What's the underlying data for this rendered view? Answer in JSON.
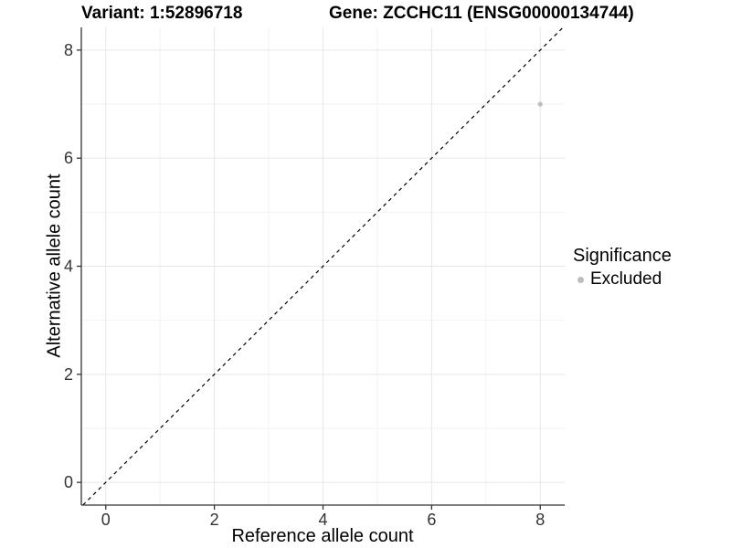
{
  "header": {
    "variant_title": "Variant: 1:52896718",
    "gene_title": "Gene: ZCCHC11 (ENSG00000134744)"
  },
  "chart_data": {
    "type": "scatter",
    "xlabel": "Reference allele count",
    "ylabel": "Alternative allele count",
    "xlim": [
      -0.45,
      8.45
    ],
    "ylim": [
      -0.42,
      8.42
    ],
    "x_ticks": [
      0,
      2,
      4,
      6,
      8
    ],
    "y_ticks": [
      0,
      2,
      4,
      6,
      8
    ],
    "x_minor_ticks": [
      1,
      3,
      5,
      7
    ],
    "y_minor_ticks": [
      1,
      3,
      5,
      7
    ],
    "grid": "on",
    "legend_position": "right",
    "series": [
      {
        "name": "Excluded",
        "color": "#bdbdbd",
        "points": [
          {
            "x": 8,
            "y": 7
          }
        ]
      }
    ],
    "reference_line": {
      "type": "identity",
      "style": "dashed",
      "color": "#000000"
    }
  },
  "legend": {
    "title": "Significance",
    "items": [
      {
        "label": "Excluded",
        "color": "#bdbdbd"
      }
    ]
  },
  "colors": {
    "background": "#ffffff",
    "grid_major": "#e7e7e7",
    "grid_minor": "#f2f2f2",
    "axis_line": "#333333",
    "tick_label": "#333333",
    "point": "#bdbdbd"
  }
}
